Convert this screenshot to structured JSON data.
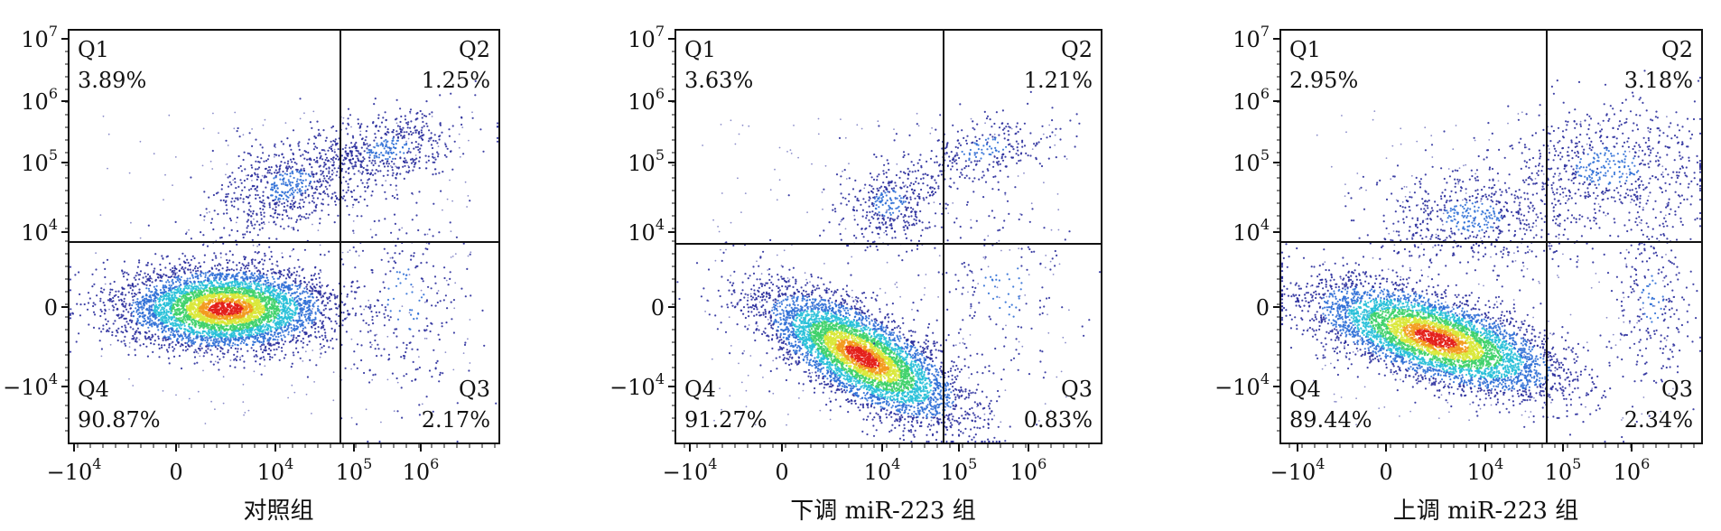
{
  "chart_data": [
    {
      "type": "scatter",
      "xlabel": "对照组",
      "ylabel": "",
      "x_ticks": [
        {
          "label": "−10",
          "sup": "4"
        },
        {
          "label": "0",
          "sup": ""
        },
        {
          "label": "10",
          "sup": "4"
        },
        {
          "label": "10",
          "sup": "5"
        },
        {
          "label": "10",
          "sup": "6"
        }
      ],
      "y_ticks": [
        {
          "label": "10",
          "sup": "7"
        },
        {
          "label": "10",
          "sup": "6"
        },
        {
          "label": "10",
          "sup": "5"
        },
        {
          "label": "10",
          "sup": "4"
        },
        {
          "label": "0",
          "sup": ""
        },
        {
          "label": "−10",
          "sup": "4"
        }
      ],
      "quadrants": [
        {
          "name": "Q1",
          "value": "3.89%"
        },
        {
          "name": "Q2",
          "value": "1.25%"
        },
        {
          "name": "Q3",
          "value": "2.17%"
        },
        {
          "name": "Q4",
          "value": "90.87%"
        }
      ],
      "populations": [
        {
          "region": "Q4",
          "center_x": "0.3×10^4",
          "center_y": "0",
          "fraction": 0.9087
        },
        {
          "region": "Q1",
          "center_x": "1×10^4",
          "center_y": "3×10^4",
          "fraction": 0.0389
        },
        {
          "region": "Q2",
          "center_x": "5×10^5",
          "center_y": "1.5×10^5",
          "fraction": 0.0125
        },
        {
          "region": "Q3",
          "center_x": "3×10^5",
          "center_y": "−0.5×10^4",
          "fraction": 0.0217
        }
      ],
      "grid": false
    },
    {
      "type": "scatter",
      "xlabel": "下调 miR-223 组",
      "ylabel": "",
      "x_ticks": [
        {
          "label": "−10",
          "sup": "4"
        },
        {
          "label": "0",
          "sup": ""
        },
        {
          "label": "10",
          "sup": "4"
        },
        {
          "label": "10",
          "sup": "5"
        },
        {
          "label": "10",
          "sup": "6"
        }
      ],
      "y_ticks": [
        {
          "label": "10",
          "sup": "7"
        },
        {
          "label": "10",
          "sup": "6"
        },
        {
          "label": "10",
          "sup": "5"
        },
        {
          "label": "10",
          "sup": "4"
        },
        {
          "label": "0",
          "sup": ""
        },
        {
          "label": "−10",
          "sup": "4"
        }
      ],
      "quadrants": [
        {
          "name": "Q1",
          "value": "3.63%"
        },
        {
          "name": "Q2",
          "value": "1.21%"
        },
        {
          "name": "Q3",
          "value": "0.83%"
        },
        {
          "name": "Q4",
          "value": "91.27%"
        }
      ],
      "populations": [
        {
          "region": "Q4",
          "center_x": "0.8×10^4",
          "center_y": "−0.6×10^4",
          "fraction": 0.9127
        },
        {
          "region": "Q1",
          "center_x": "1×10^4",
          "center_y": "2×10^4",
          "fraction": 0.0363
        },
        {
          "region": "Q2",
          "center_x": "4×10^5",
          "center_y": "1.8×10^5",
          "fraction": 0.0121
        },
        {
          "region": "Q3",
          "center_x": "2×10^5",
          "center_y": "−0.3×10^4",
          "fraction": 0.0083
        }
      ],
      "grid": false
    },
    {
      "type": "scatter",
      "xlabel": "上调 miR-223 组",
      "ylabel": "",
      "x_ticks": [
        {
          "label": "−10",
          "sup": "4"
        },
        {
          "label": "0",
          "sup": ""
        },
        {
          "label": "10",
          "sup": "4"
        },
        {
          "label": "10",
          "sup": "5"
        },
        {
          "label": "10",
          "sup": "6"
        }
      ],
      "y_ticks": [
        {
          "label": "10",
          "sup": "7"
        },
        {
          "label": "10",
          "sup": "6"
        },
        {
          "label": "10",
          "sup": "5"
        },
        {
          "label": "10",
          "sup": "4"
        },
        {
          "label": "0",
          "sup": ""
        },
        {
          "label": "−10",
          "sup": "4"
        }
      ],
      "quadrants": [
        {
          "name": "Q1",
          "value": "2.95%"
        },
        {
          "name": "Q2",
          "value": "3.18%"
        },
        {
          "name": "Q3",
          "value": "2.34%"
        },
        {
          "name": "Q4",
          "value": "89.44%"
        }
      ],
      "populations": [
        {
          "region": "Q4",
          "center_x": "0.5×10^4",
          "center_y": "−0.3×10^4",
          "fraction": 0.8944
        },
        {
          "region": "Q1",
          "center_x": "1×10^4",
          "center_y": "1.2×10^4",
          "fraction": 0.0295
        },
        {
          "region": "Q2",
          "center_x": "8×10^5",
          "center_y": "1.5×10^5",
          "fraction": 0.0318
        },
        {
          "region": "Q3",
          "center_x": "2×10^6",
          "center_y": "−0.5×10^4",
          "fraction": 0.0234
        }
      ],
      "grid": false
    }
  ],
  "colors": {
    "sparse": "#2a2e9c",
    "low": "#2f6fd6",
    "mid_low": "#27c0d8",
    "mid": "#3fd16a",
    "mid_high": "#d9e83a",
    "high": "#f39a1e",
    "peak": "#e3201b",
    "axis": "#111111",
    "background": "#ffffff"
  }
}
